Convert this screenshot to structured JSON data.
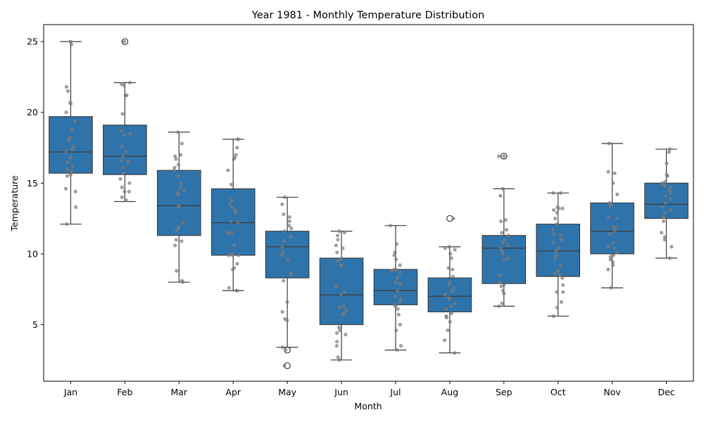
{
  "chart_data": {
    "type": "box",
    "title": "Year 1981 - Monthly Temperature Distribution",
    "xlabel": "Month",
    "ylabel": "Temperature",
    "ylim": [
      1.0,
      26.2
    ],
    "yticks": [
      5,
      10,
      15,
      20,
      25
    ],
    "grid": false,
    "box_color": "#2f73ab",
    "point_color": "#7a7a7a",
    "categories": [
      "Jan",
      "Feb",
      "Mar",
      "Apr",
      "May",
      "Jun",
      "Jul",
      "Aug",
      "Sep",
      "Oct",
      "Nov",
      "Dec"
    ],
    "stats": [
      {
        "whislo": 12.1,
        "q1": 15.7,
        "med": 17.2,
        "q3": 19.7,
        "whishi": 25.0,
        "fliers": []
      },
      {
        "whislo": 13.7,
        "q1": 15.6,
        "med": 16.9,
        "q3": 19.1,
        "whishi": 22.1,
        "fliers": [
          25.0
        ]
      },
      {
        "whislo": 8.0,
        "q1": 11.3,
        "med": 13.4,
        "q3": 15.9,
        "whishi": 18.6,
        "fliers": []
      },
      {
        "whislo": 7.4,
        "q1": 9.9,
        "med": 12.2,
        "q3": 14.6,
        "whishi": 18.1,
        "fliers": []
      },
      {
        "whislo": 3.4,
        "q1": 8.3,
        "med": 10.5,
        "q3": 11.6,
        "whishi": 14.0,
        "fliers": [
          3.2,
          2.1
        ]
      },
      {
        "whislo": 2.5,
        "q1": 5.0,
        "med": 7.1,
        "q3": 9.7,
        "whishi": 11.6,
        "fliers": []
      },
      {
        "whislo": 3.2,
        "q1": 6.4,
        "med": 7.4,
        "q3": 8.9,
        "whishi": 12.0,
        "fliers": []
      },
      {
        "whislo": 3.0,
        "q1": 5.9,
        "med": 7.0,
        "q3": 8.3,
        "whishi": 10.5,
        "fliers": [
          12.5
        ]
      },
      {
        "whislo": 6.3,
        "q1": 7.9,
        "med": 10.4,
        "q3": 11.3,
        "whishi": 14.6,
        "fliers": [
          16.9
        ]
      },
      {
        "whislo": 5.6,
        "q1": 8.4,
        "med": 10.2,
        "q3": 12.1,
        "whishi": 14.3,
        "fliers": []
      },
      {
        "whislo": 7.6,
        "q1": 10.0,
        "med": 11.6,
        "q3": 13.6,
        "whishi": 17.8,
        "fliers": []
      },
      {
        "whislo": 9.7,
        "q1": 12.5,
        "med": 13.5,
        "q3": 15.0,
        "whishi": 17.4,
        "fliers": []
      }
    ],
    "points": [
      [
        25.0,
        24.8,
        21.8,
        21.5,
        20.7,
        20.6,
        20.0,
        19.4,
        18.8,
        18.2,
        18.0,
        17.6,
        17.4,
        17.2,
        16.8,
        16.5,
        16.2,
        16.0,
        15.8,
        15.6,
        15.5,
        14.6,
        14.4,
        13.3,
        12.1
      ],
      [
        25.0,
        22.1,
        22.0,
        21.9,
        21.2,
        21.2,
        19.9,
        18.7,
        18.5,
        18.4,
        17.6,
        17.2,
        16.9,
        16.6,
        16.5,
        16.1,
        15.7,
        15.3,
        15.0,
        14.7,
        14.4,
        14.4,
        14.0,
        13.8
      ],
      [
        18.6,
        17.8,
        17.0,
        16.9,
        16.7,
        16.3,
        16.1,
        15.9,
        15.5,
        15.0,
        14.7,
        14.5,
        14.3,
        14.2,
        13.4,
        13.3,
        12.2,
        11.9,
        11.8,
        11.6,
        11.0,
        10.9,
        10.6,
        8.8,
        8.1,
        8.0
      ],
      [
        18.1,
        18.1,
        17.5,
        17.0,
        16.8,
        16.7,
        15.9,
        14.9,
        13.8,
        13.5,
        13.3,
        13.1,
        12.9,
        12.3,
        12.2,
        11.5,
        11.5,
        10.6,
        10.0,
        9.9,
        9.9,
        9.9,
        9.3,
        9.0,
        8.9,
        7.6,
        7.4,
        7.4
      ],
      [
        14.0,
        13.5,
        12.8,
        12.6,
        12.3,
        12.0,
        11.8,
        11.6,
        11.2,
        10.9,
        10.5,
        10.1,
        9.9,
        9.6,
        8.6,
        8.5,
        8.1,
        6.6,
        5.9,
        5.4,
        5.3,
        3.4,
        3.2,
        2.1
      ],
      [
        11.6,
        11.5,
        11.3,
        11.0,
        10.6,
        10.4,
        10.1,
        9.6,
        9.5,
        9.2,
        9.2,
        7.7,
        7.3,
        7.1,
        6.3,
        6.2,
        6.0,
        5.8,
        5.7,
        4.8,
        4.6,
        4.4,
        4.3,
        3.8,
        3.5,
        2.7,
        2.5
      ],
      [
        12.0,
        10.7,
        10.1,
        9.9,
        9.6,
        9.2,
        8.9,
        8.9,
        8.8,
        8.7,
        8.3,
        8.0,
        7.9,
        7.4,
        7.0,
        6.8,
        6.6,
        6.4,
        6.3,
        6.1,
        5.7,
        5.0,
        4.6,
        3.5,
        3.2
      ],
      [
        12.5,
        10.5,
        10.4,
        10.3,
        10.0,
        9.7,
        9.0,
        8.9,
        8.4,
        8.0,
        7.8,
        7.6,
        7.4,
        7.1,
        6.9,
        6.8,
        6.5,
        6.3,
        6.1,
        5.8,
        5.6,
        5.5,
        5.2,
        4.6,
        3.9,
        3.0
      ],
      [
        16.9,
        16.9,
        14.6,
        14.1,
        12.4,
        12.3,
        11.7,
        11.5,
        11.3,
        11.0,
        10.8,
        10.6,
        10.4,
        10.2,
        10.0,
        9.7,
        9.6,
        8.5,
        8.0,
        7.8,
        7.7,
        7.4,
        7.2,
        6.5,
        6.3
      ],
      [
        14.3,
        14.3,
        13.3,
        13.2,
        13.2,
        13.1,
        12.9,
        12.5,
        12.1,
        11.7,
        11.4,
        11.3,
        11.0,
        10.8,
        10.4,
        10.2,
        9.9,
        9.7,
        9.2,
        8.8,
        8.6,
        8.5,
        8.3,
        7.8,
        7.3,
        7.3,
        6.6,
        6.2,
        5.6
      ],
      [
        17.8,
        15.8,
        15.7,
        15.0,
        14.2,
        13.6,
        13.5,
        13.4,
        12.6,
        12.5,
        11.9,
        11.8,
        11.6,
        11.4,
        10.8,
        10.5,
        10.4,
        10.1,
        9.9,
        9.8,
        9.6,
        9.4,
        9.2,
        8.9,
        7.6
      ],
      [
        17.4,
        17.2,
        16.4,
        15.6,
        15.5,
        15.1,
        15.0,
        14.9,
        14.8,
        14.7,
        14.5,
        14.3,
        14.1,
        13.9,
        13.6,
        13.3,
        13.1,
        12.9,
        12.6,
        12.3,
        11.5,
        11.2,
        11.0,
        10.5,
        9.7
      ]
    ]
  }
}
